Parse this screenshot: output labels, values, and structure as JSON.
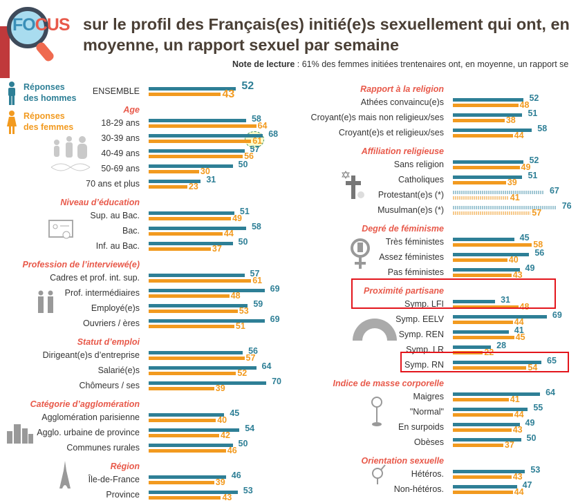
{
  "header": {
    "logo_text_1": "FO",
    "logo_text_2": "CUS",
    "title": "sur le profil des Français(es) initié(e)s sexuellement qui ont, en moyenne, un rapport sexuel par semaine",
    "note_label": "Note de lecture",
    "note_text": " : 61% des femmes initiées trentenaires ont, en moyenne, un rapport se"
  },
  "legend": {
    "men": "Réponses des hommes",
    "women": "Réponses des femmes"
  },
  "colors": {
    "men": "#2e7f96",
    "women": "#f29a1f",
    "section": "#e8594a",
    "highlight": "#e3141b"
  },
  "chart_data": [
    {
      "type": "bar",
      "orientation": "horizontal",
      "series": [
        "hommes",
        "femmes"
      ],
      "unit": "%",
      "groups": [
        {
          "title": "",
          "rows": [
            {
              "label": "ENSEMBLE",
              "m": 52,
              "f": 43,
              "big": true
            }
          ]
        },
        {
          "title": "Age",
          "rows": [
            {
              "label": "18-29 ans",
              "m": 58,
              "f": 64
            },
            {
              "label": "30-39 ans",
              "m": 68,
              "f": 61,
              "annotated": true
            },
            {
              "label": "40-49 ans",
              "m": 57,
              "f": 56
            },
            {
              "label": "50-69 ans",
              "m": 50,
              "f": 30
            },
            {
              "label": "70 ans et plus",
              "m": 31,
              "f": 23
            }
          ]
        },
        {
          "title": "Niveau d’éducation",
          "rows": [
            {
              "label": "Sup. au Bac.",
              "m": 51,
              "f": 49
            },
            {
              "label": "Bac.",
              "m": 58,
              "f": 44
            },
            {
              "label": "Inf. au Bac.",
              "m": 50,
              "f": 37
            }
          ]
        },
        {
          "title": "Profession de l’interviewé(e)",
          "rows": [
            {
              "label": "Cadres et prof. int. sup.",
              "m": 57,
              "f": 61
            },
            {
              "label": "Prof. intermédiaires",
              "m": 69,
              "f": 48
            },
            {
              "label": "Employé(e)s",
              "m": 59,
              "f": 53
            },
            {
              "label": "Ouvriers / ères",
              "m": 69,
              "f": 51
            }
          ]
        },
        {
          "title": "Statut d’emploi",
          "rows": [
            {
              "label": "Dirigeant(e)s d’entreprise",
              "m": 56,
              "f": 57
            },
            {
              "label": "Salarié(e)s",
              "m": 64,
              "f": 52
            },
            {
              "label": "Chômeurs / ses",
              "m": 70,
              "f": 39
            }
          ]
        },
        {
          "title": "Catégorie d’agglomération",
          "rows": [
            {
              "label": "Agglomération parisienne",
              "m": 45,
              "f": 40
            },
            {
              "label": "Agglo. urbaine de province",
              "m": 54,
              "f": 42
            },
            {
              "label": "Communes rurales",
              "m": 50,
              "f": 46
            }
          ]
        },
        {
          "title": "Région",
          "rows": [
            {
              "label": "Île-de-France",
              "m": 46,
              "f": 39
            },
            {
              "label": "Province",
              "m": 53,
              "f": 43
            }
          ]
        }
      ]
    },
    {
      "type": "bar",
      "orientation": "horizontal",
      "series": [
        "hommes",
        "femmes"
      ],
      "unit": "%",
      "groups": [
        {
          "title": "Rapport à la religion",
          "rows": [
            {
              "label": "Athées convaincu(e)s",
              "m": 52,
              "f": 48
            },
            {
              "label": "Croyant(e)s mais non religieux/ses",
              "m": 51,
              "f": 38
            },
            {
              "label": "Croyant(e)s et religieux/ses",
              "m": 58,
              "f": 44
            }
          ]
        },
        {
          "title": "Affiliation religieuse",
          "rows": [
            {
              "label": "Sans religion",
              "m": 52,
              "f": 49
            },
            {
              "label": "Catholiques",
              "m": 51,
              "f": 39
            },
            {
              "label": "Protestant(e)s (*)",
              "m": 67,
              "f": 41,
              "hatched": true
            },
            {
              "label": "Musulman(e)s (*)",
              "m": 76,
              "f": 57,
              "hatched": true
            }
          ]
        },
        {
          "title": "Degré de féminisme",
          "rows": [
            {
              "label": "Très féministes",
              "m": 45,
              "f": 58
            },
            {
              "label": "Assez féministes",
              "m": 56,
              "f": 40
            },
            {
              "label": "Pas féministes",
              "m": 49,
              "f": 43
            }
          ]
        },
        {
          "title": "Proximité partisane",
          "highlight": true,
          "rows": [
            {
              "label": "Symp. LFI",
              "m": 31,
              "f": 48,
              "highlight": true
            },
            {
              "label": "Symp. EELV",
              "m": 69,
              "f": 44
            },
            {
              "label": "Symp. REN",
              "m": 41,
              "f": 45
            },
            {
              "label": "Symp. LR",
              "m": 28,
              "f": 22
            },
            {
              "label": "Symp. RN",
              "m": 65,
              "f": 54,
              "highlight": true
            }
          ]
        },
        {
          "title": "Indice de masse corporelle",
          "rows": [
            {
              "label": "Maigres",
              "m": 64,
              "f": 41
            },
            {
              "label": "\"Normal\"",
              "m": 55,
              "f": 44
            },
            {
              "label": "En surpoids",
              "m": 49,
              "f": 43
            },
            {
              "label": "Obèses",
              "m": 50,
              "f": 37
            }
          ]
        },
        {
          "title": "Orientation sexuelle",
          "rows": [
            {
              "label": "Hétéros.",
              "m": 53,
              "f": 43
            },
            {
              "label": "Non-hétéros.",
              "m": 47,
              "f": 44
            }
          ]
        }
      ]
    }
  ]
}
